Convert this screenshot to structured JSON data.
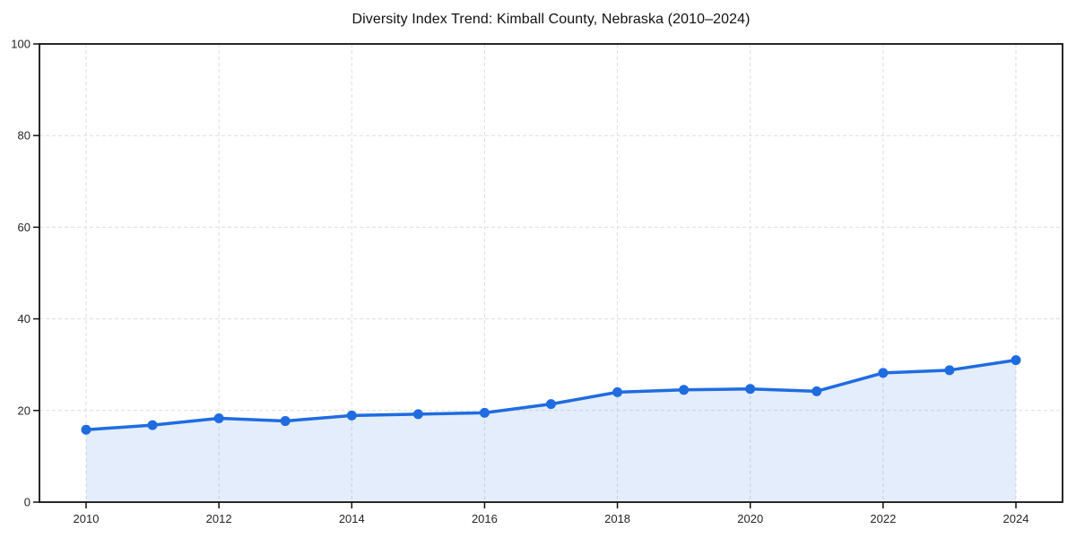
{
  "chart_data": {
    "type": "area",
    "title": "Diversity Index Trend: Kimball County, Nebraska (2010–2024)",
    "x": [
      2010,
      2011,
      2012,
      2013,
      2014,
      2015,
      2016,
      2017,
      2018,
      2019,
      2020,
      2021,
      2022,
      2023,
      2024
    ],
    "series": [
      {
        "name": "Diversity Index",
        "values": [
          15.8,
          16.8,
          18.3,
          17.7,
          18.9,
          19.2,
          19.5,
          21.4,
          24.0,
          24.5,
          24.7,
          24.2,
          28.2,
          28.8,
          31.0
        ]
      }
    ],
    "xlabel": "",
    "ylabel": "",
    "ylim": [
      0,
      100
    ],
    "y_ticks": [
      0,
      20,
      40,
      60,
      80,
      100
    ],
    "y_tick_labels": [
      "0",
      "20",
      "40",
      "60",
      "80",
      "100"
    ],
    "x_ticks": [
      2010,
      2012,
      2014,
      2016,
      2018,
      2020,
      2022,
      2024
    ],
    "x_tick_labels": [
      "2010",
      "2012",
      "2014",
      "2016",
      "2018",
      "2020",
      "2022",
      "2024"
    ],
    "grid": true,
    "grid_style": "dashed",
    "legend": false,
    "colors": {
      "line": "#1f6ce0",
      "marker": "#1f6ce0",
      "fill": "#1f6ce0",
      "fill_opacity": 0.12,
      "grid": "#dedede",
      "axis": "#111111",
      "tick_label": "#262626",
      "title": "#111111",
      "background": "#ffffff"
    }
  }
}
